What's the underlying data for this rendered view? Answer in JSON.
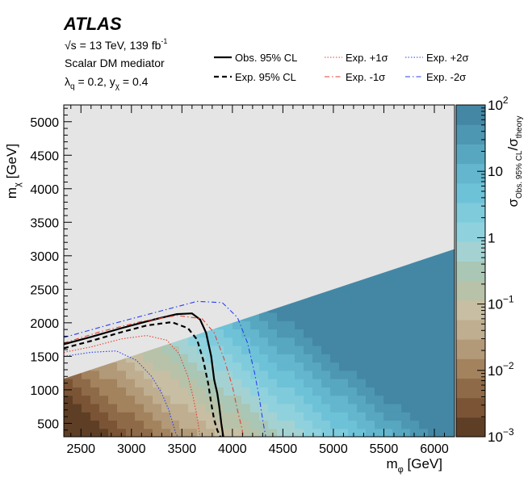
{
  "chart_data": {
    "type": "heatmap",
    "experiment": "ATLAS",
    "energy_label": "√s = 13 TeV, 139 fb",
    "lumi_sup": "-1",
    "title": "Scalar DM mediator",
    "couplings": "λq = 0.2, yχ = 0.4",
    "xlabel": "m_φ [GeV]",
    "ylabel": "m_χ [GeV]",
    "zlabel": "σ_Obs. 95% CL / σ_theory",
    "xlim": [
      2330,
      6200
    ],
    "ylim": [
      300,
      5250
    ],
    "zlim": [
      0.001,
      100
    ],
    "zscale": "log",
    "x_ticks": [
      2500,
      3000,
      3500,
      4000,
      4500,
      5000,
      5500,
      6000
    ],
    "y_ticks": [
      500,
      1000,
      1500,
      2000,
      2500,
      3000,
      3500,
      4000,
      4500,
      5000
    ],
    "z_ticks": [
      {
        "base": "10",
        "exp": "2",
        "value": 100
      },
      {
        "base": "10",
        "exp": "",
        "value": 10
      },
      {
        "base": "1",
        "exp": "",
        "value": 1
      },
      {
        "base": "10",
        "exp": "−1",
        "value": 0.1
      },
      {
        "base": "10",
        "exp": "−2",
        "value": 0.01
      },
      {
        "base": "10",
        "exp": "−3",
        "value": 0.001
      }
    ],
    "excluded_region": "m_χ > m_φ / 2 (kinematically forbidden)",
    "legend_placement": "top",
    "series": [
      {
        "name": "Obs. 95% CL",
        "style": "solid",
        "color": "#000000",
        "x": [
          2330,
          2600,
          2900,
          3200,
          3450,
          3600,
          3680,
          3740,
          3790,
          3820,
          3850,
          3870,
          3890,
          3910
        ],
        "y": [
          1680,
          1790,
          1920,
          2040,
          2130,
          2140,
          2050,
          1850,
          1500,
          1150,
          950,
          750,
          500,
          300
        ]
      },
      {
        "name": "Exp. 95% CL",
        "style": "dashed",
        "color": "#000000",
        "x": [
          2330,
          2600,
          2900,
          3150,
          3400,
          3560,
          3650,
          3710,
          3760,
          3790,
          3820,
          3850,
          3880
        ],
        "y": [
          1620,
          1730,
          1860,
          1960,
          2010,
          1920,
          1750,
          1450,
          1100,
          800,
          550,
          400,
          300
        ]
      },
      {
        "name": "Exp. +1σ",
        "style": "dotted",
        "color": "#e34234",
        "x": [
          2330,
          2600,
          2900,
          3150,
          3350,
          3470,
          3560,
          3610,
          3650,
          3670,
          3680
        ],
        "y": [
          1560,
          1640,
          1760,
          1810,
          1740,
          1540,
          1200,
          900,
          600,
          400,
          300
        ]
      },
      {
        "name": "Exp. -1σ",
        "style": "dashdot",
        "color": "#e34234",
        "x": [
          2330,
          2700,
          3100,
          3450,
          3700,
          3820,
          3920,
          4000,
          4050,
          4090,
          4110
        ],
        "y": [
          1700,
          1870,
          2020,
          2110,
          2060,
          1850,
          1450,
          1050,
          700,
          450,
          300
        ]
      },
      {
        "name": "Exp. +2σ",
        "style": "dotted",
        "color": "#2b3ff0",
        "x": [
          2330,
          2600,
          2850,
          3050,
          3200,
          3300,
          3370,
          3410,
          3440,
          3460
        ],
        "y": [
          1500,
          1560,
          1580,
          1440,
          1200,
          950,
          700,
          500,
          350,
          300
        ]
      },
      {
        "name": "Exp. -2σ",
        "style": "dashdot",
        "color": "#2b3ff0",
        "x": [
          2330,
          2800,
          3300,
          3650,
          3900,
          4050,
          4150,
          4220,
          4270,
          4300,
          4330
        ],
        "y": [
          1780,
          1980,
          2180,
          2320,
          2300,
          2080,
          1700,
          1250,
          850,
          550,
          300
        ]
      }
    ]
  },
  "palette": {
    "z_colors": [
      "#5e3f25",
      "#7a5434",
      "#8f6a48",
      "#a3825e",
      "#b29978",
      "#bfae8f",
      "#c8bea3",
      "#b8c2a8",
      "#aac6b4",
      "#a4d2d2",
      "#8fd2de",
      "#7fcbdc",
      "#6ec2d7",
      "#63b6cd",
      "#58a7c0",
      "#4d97b3",
      "#4487a5"
    ],
    "excluded": "#e5e5e5"
  }
}
